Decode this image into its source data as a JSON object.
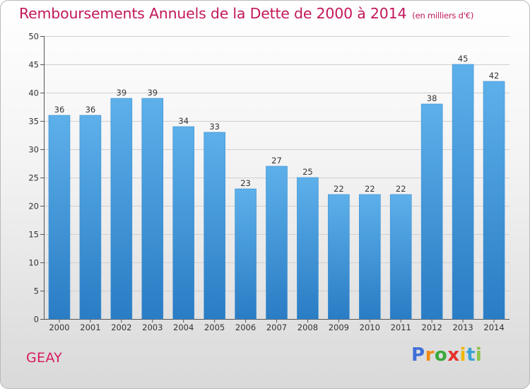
{
  "header": {
    "title": "Remboursements Annuels de la Dette de 2000 à 2014",
    "unit": "(en milliers d'€)"
  },
  "footer": {
    "commune": "GEAY",
    "logo": {
      "letters": [
        "P",
        "r",
        "o",
        "x",
        "i",
        "t",
        "i"
      ],
      "colors": [
        "#3f6fd8",
        "#ef8a14",
        "#39a83a",
        "#e5322b",
        "#f0b800",
        "#3aa3d6",
        "#8bc34a"
      ],
      "text": "Proxiti"
    }
  },
  "colors": {
    "bar_light": "#5db0ea",
    "bar_dark": "#2a7cc4",
    "title": "#c2185b",
    "grid": "#d0d0d0"
  },
  "chart_data": {
    "type": "bar",
    "title": "Remboursements Annuels de la Dette de 2000 à 2014",
    "subtitle": "(en milliers d'€)",
    "categories": [
      "2000",
      "2001",
      "2002",
      "2003",
      "2004",
      "2005",
      "2006",
      "2007",
      "2008",
      "2009",
      "2010",
      "2011",
      "2012",
      "2013",
      "2014"
    ],
    "values": [
      36,
      36,
      39,
      39,
      34,
      33,
      23,
      27,
      25,
      22,
      22,
      22,
      38,
      45,
      42
    ],
    "ylim": [
      0,
      50
    ],
    "yticks": [
      0,
      5,
      10,
      15,
      20,
      25,
      30,
      35,
      40,
      45,
      50
    ],
    "xlabel": "",
    "ylabel": "",
    "grid": true,
    "data_labels": true
  }
}
